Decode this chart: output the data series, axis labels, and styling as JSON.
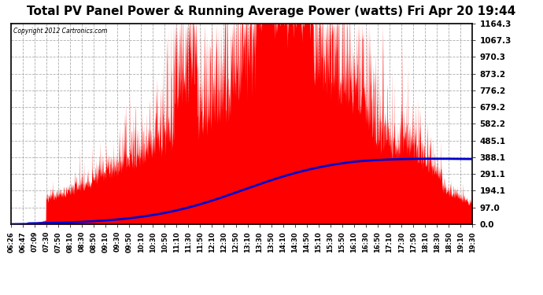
{
  "title": "Total PV Panel Power & Running Average Power (watts) Fri Apr 20 19:44",
  "copyright": "Copyright 2012 Cartronics.com",
  "yticks": [
    0.0,
    97.0,
    194.1,
    291.1,
    388.1,
    485.1,
    582.2,
    679.2,
    776.2,
    873.2,
    970.3,
    1067.3,
    1164.3
  ],
  "ymax": 1164.3,
  "ymin": 0.0,
  "bar_color": "#ff0000",
  "line_color": "#0000cc",
  "bg_color": "#ffffff",
  "grid_color": "#999999",
  "title_fontsize": 11,
  "xtick_labels": [
    "06:26",
    "06:47",
    "07:09",
    "07:30",
    "07:50",
    "08:10",
    "08:30",
    "08:50",
    "09:10",
    "09:30",
    "09:50",
    "10:10",
    "10:30",
    "10:50",
    "11:10",
    "11:30",
    "11:50",
    "12:10",
    "12:30",
    "12:50",
    "13:10",
    "13:30",
    "13:50",
    "14:10",
    "14:30",
    "14:50",
    "15:10",
    "15:30",
    "15:50",
    "16:10",
    "16:30",
    "16:50",
    "17:10",
    "17:30",
    "17:50",
    "18:10",
    "18:30",
    "18:50",
    "19:10",
    "19:30"
  ]
}
